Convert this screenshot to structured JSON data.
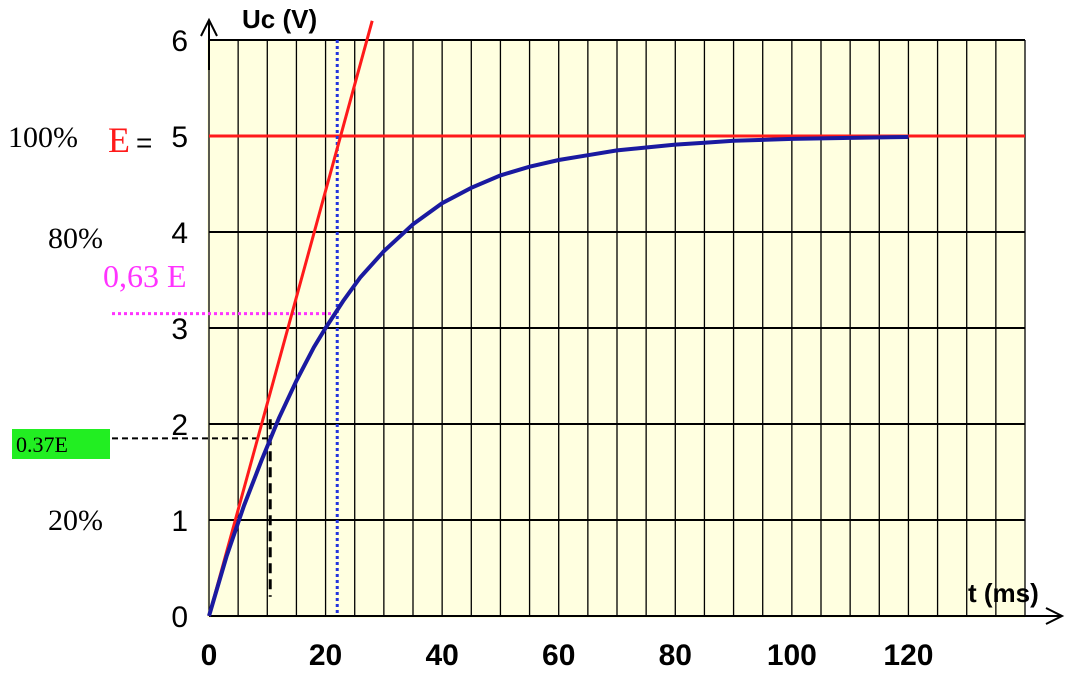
{
  "chart_data": {
    "type": "line",
    "xlabel": "t (ms)",
    "ylabel": "Uc (V)",
    "xlim": [
      0,
      140
    ],
    "ylim": [
      0,
      6
    ],
    "x_ticks": [
      0,
      20,
      40,
      60,
      80,
      100,
      120
    ],
    "y_ticks": [
      0,
      1,
      2,
      3,
      4,
      5,
      6
    ],
    "grid": true,
    "series": [
      {
        "values_x": [
          0,
          3,
          6,
          9,
          12,
          15,
          18,
          20,
          23,
          26,
          30,
          35,
          40,
          45,
          50,
          55,
          60,
          65,
          70,
          75,
          80,
          85,
          90,
          100,
          110,
          120
        ],
        "values_y": [
          0,
          0.62,
          1.15,
          1.62,
          2.06,
          2.45,
          2.8,
          3.0,
          3.28,
          3.53,
          3.8,
          4.08,
          4.3,
          4.46,
          4.59,
          4.68,
          4.75,
          4.8,
          4.85,
          4.88,
          4.91,
          4.93,
          4.95,
          4.97,
          4.98,
          4.99
        ],
        "color": "#1a1aa0"
      }
    ],
    "reference_lines": {
      "asymptote_y": 5,
      "asymptote_color": "#ff1a1a",
      "tangent": {
        "x": [
          0,
          28
        ],
        "y": [
          0,
          6.2
        ],
        "color": "#ff1a1a"
      },
      "tau_x": 22,
      "tau_color": "#2233dd",
      "level_063_y": 3.15,
      "level_063_color": "#ff33ff",
      "level_037_y": 1.85,
      "drop_x": 10.5
    },
    "annotations": {
      "pct_100": "100%",
      "e_label": "E",
      "e_equals": "=",
      "pct_80": "80%",
      "pct_20": "20%",
      "label_063": "0,63 E",
      "label_037": "0.37E"
    },
    "colors": {
      "grid": "#000000",
      "background": "#ffffe0",
      "red": "#ff1a1a",
      "magenta": "#ff33ff",
      "green_highlight": "#22ee22"
    }
  }
}
